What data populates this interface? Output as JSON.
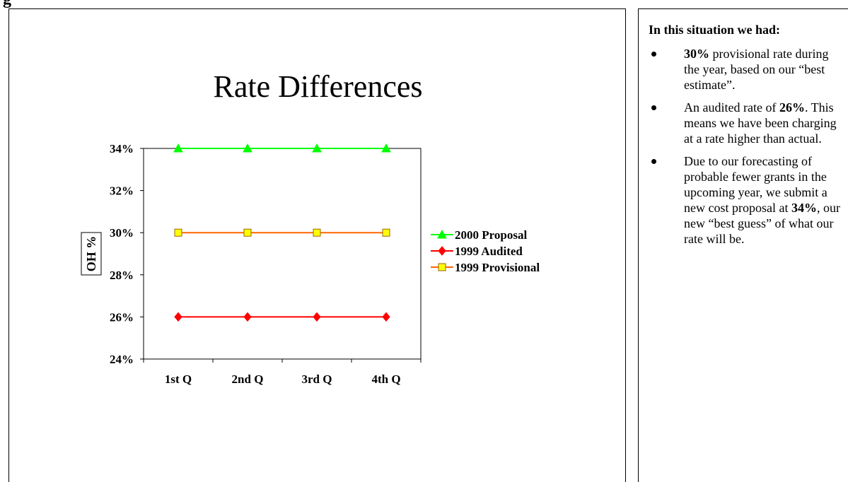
{
  "page": {
    "cutoff_heading": "g"
  },
  "slide": {
    "title": "Rate Differences"
  },
  "chart_data": {
    "type": "line",
    "title": "",
    "categories": [
      "1st Q",
      "2nd Q",
      "3rd Q",
      "4th Q"
    ],
    "ylabel": "OH %",
    "xlabel": "",
    "ylim": [
      24,
      34
    ],
    "yticks": [
      "24%",
      "26%",
      "28%",
      "30%",
      "32%",
      "34%"
    ],
    "grid": false,
    "legend_position": "right",
    "series": [
      {
        "name": "2000 Proposal",
        "values": [
          34,
          34,
          34,
          34
        ],
        "color": "#00ff00",
        "marker": "triangle",
        "marker_color": "#00ff00"
      },
      {
        "name": "1999 Audited",
        "values": [
          26,
          26,
          26,
          26
        ],
        "color": "#ff0000",
        "marker": "diamond",
        "marker_color": "#ff0000"
      },
      {
        "name": "1999 Provisional",
        "values": [
          30,
          30,
          30,
          30
        ],
        "color": "#ff6600",
        "marker": "square",
        "marker_color": "#ffff00"
      }
    ]
  },
  "notes": {
    "heading": "In this situation we had:",
    "bullets": [
      {
        "b": "30%",
        "t1": " provisional rate during the year, based on our “best estimate”."
      },
      {
        "t1": "An audited rate of ",
        "b": "26%",
        "t2": ".  This means we have been charging at a rate higher than actual."
      },
      {
        "t1": "Due to our forecasting of probable fewer grants in the upcoming year, we submit a new cost proposal at ",
        "b": "34%",
        "t2": ", our new “best guess” of what our rate will be."
      }
    ]
  }
}
